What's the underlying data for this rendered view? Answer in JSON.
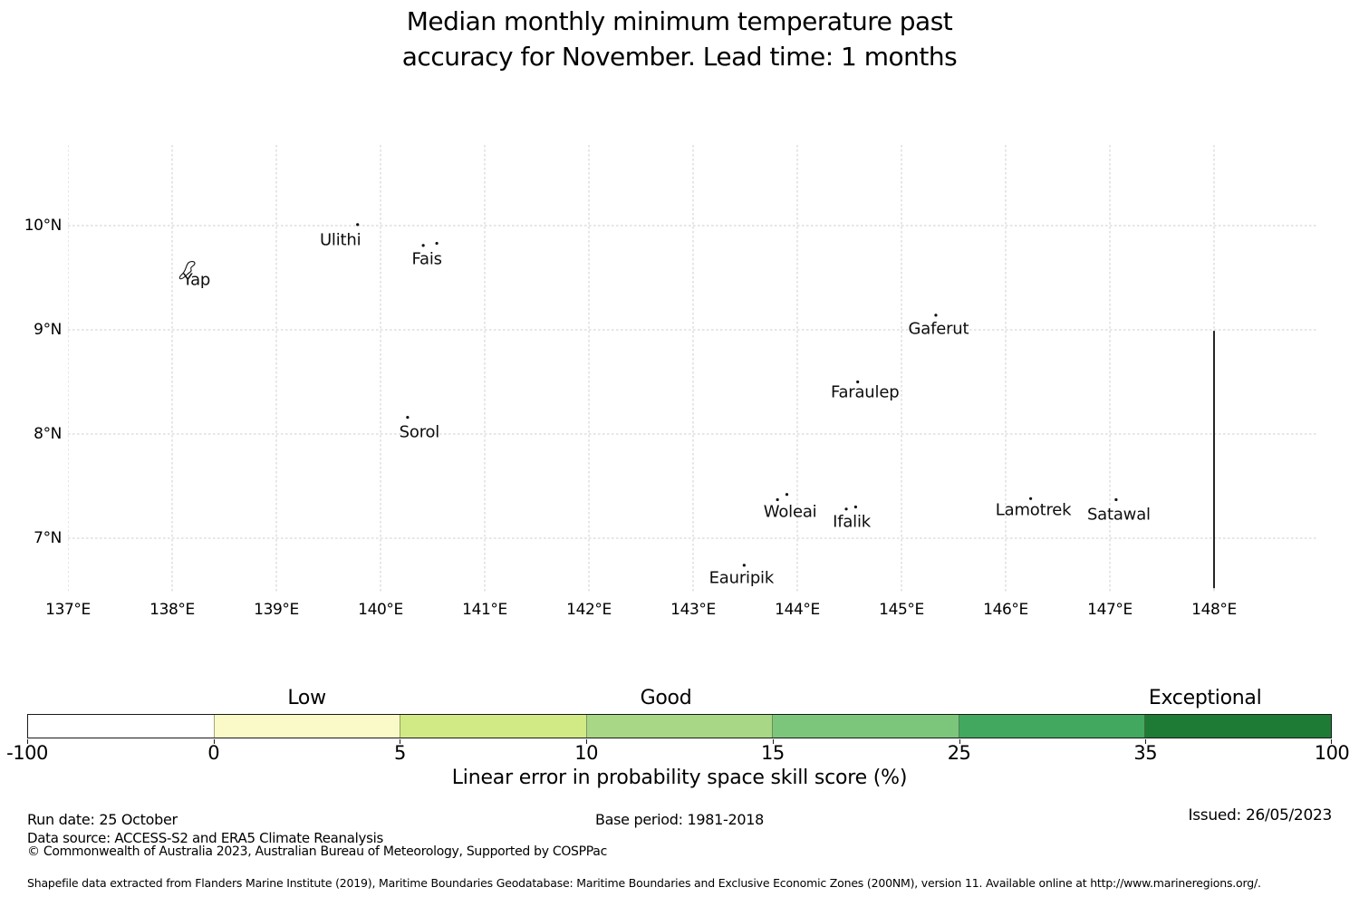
{
  "title": {
    "line1": "Median monthly minimum temperature past",
    "line2": "accuracy for November. Lead time: 1 months"
  },
  "chart_data": {
    "type": "scatter",
    "subtype": "geographic-map",
    "title": "Median monthly minimum temperature past accuracy for November. Lead time: 1 months",
    "grid": "dashed",
    "x_axis": {
      "range_deg_east": [
        137.0,
        149.0
      ],
      "ticks": [
        {
          "v": 137,
          "label": "137°E"
        },
        {
          "v": 138,
          "label": "138°E"
        },
        {
          "v": 139,
          "label": "139°E"
        },
        {
          "v": 140,
          "label": "140°E"
        },
        {
          "v": 141,
          "label": "141°E"
        },
        {
          "v": 142,
          "label": "142°E"
        },
        {
          "v": 143,
          "label": "143°E"
        },
        {
          "v": 144,
          "label": "144°E"
        },
        {
          "v": 145,
          "label": "145°E"
        },
        {
          "v": 146,
          "label": "146°E"
        },
        {
          "v": 147,
          "label": "147°E"
        },
        {
          "v": 148,
          "label": "148°E"
        }
      ]
    },
    "y_axis": {
      "range_deg_north": [
        6.47,
        10.77
      ],
      "ticks": [
        {
          "v": 10,
          "label": "10°N"
        },
        {
          "v": 9,
          "label": "9°N"
        },
        {
          "v": 8,
          "label": "8°N"
        },
        {
          "v": 7,
          "label": "7°N"
        }
      ]
    },
    "islands": [
      {
        "name": "Yap",
        "marker": "island-outline",
        "pts": [
          [
            138.13,
            9.56
          ]
        ]
      },
      {
        "name": "Ulithi",
        "marker": "dot",
        "pts": [
          [
            139.78,
            10.01
          ]
        ]
      },
      {
        "name": "Fais",
        "marker": "dot",
        "pts": [
          [
            140.41,
            9.81
          ],
          [
            140.54,
            9.83
          ]
        ]
      },
      {
        "name": "Sorol",
        "marker": "dot",
        "pts": [
          [
            140.26,
            8.16
          ]
        ]
      },
      {
        "name": "Gaferut",
        "marker": "dot",
        "pts": [
          [
            145.33,
            9.14
          ]
        ]
      },
      {
        "name": "Faraulep",
        "marker": "dot",
        "pts": [
          [
            144.58,
            8.5
          ]
        ]
      },
      {
        "name": "Woleai",
        "marker": "dot",
        "pts": [
          [
            143.81,
            7.37
          ],
          [
            143.9,
            7.42
          ]
        ]
      },
      {
        "name": "Ifalik",
        "marker": "dot",
        "pts": [
          [
            144.47,
            7.28
          ],
          [
            144.56,
            7.3
          ]
        ]
      },
      {
        "name": "Lamotrek",
        "marker": "dot",
        "pts": [
          [
            146.24,
            7.38
          ]
        ]
      },
      {
        "name": "Satawal",
        "marker": "dot",
        "pts": [
          [
            147.06,
            7.37
          ]
        ]
      },
      {
        "name": "Eauripik",
        "marker": "dot",
        "pts": [
          [
            143.49,
            6.74
          ]
        ]
      }
    ],
    "boundary_line": {
      "lon": 148.0,
      "lat_top": 8.99,
      "lat_bottom": 6.52,
      "color": "#262626"
    },
    "colorbar": {
      "xlabel": "Linear error in probability space skill score (%)",
      "tick_labels": [
        "-100",
        "0",
        "5",
        "10",
        "15",
        "25",
        "35",
        "100"
      ],
      "tick_values": [
        -100,
        0,
        5,
        10,
        15,
        25,
        35,
        100
      ],
      "segment_colors": [
        "#ffffff",
        "#fafac8",
        "#d2ea85",
        "#a8d786",
        "#7cc67c",
        "#42a85f",
        "#1e7b35"
      ],
      "categories": [
        {
          "label": "Low",
          "segment": 1
        },
        {
          "label": "Good",
          "segment": 3
        },
        {
          "label": "Exceptional",
          "segment": 6
        }
      ]
    }
  },
  "footer": {
    "run_date": "Run date: 25 October",
    "base_period": "Base period: 1981-2018",
    "issued": "Issued: 26/05/2023",
    "data_source": "Data source: ACCESS-S2 and ERA5 Climate Reanalysis",
    "copyright": "© Commonwealth of Australia 2023, Australian Bureau of Meteorology, Supported by COSPPac",
    "shapefile": "Shapefile data extracted from Flanders Marine Institute (2019), Maritime Boundaries Geodatabase: Maritime Boundaries and Exclusive Economic Zones (200NM), version 11. Available online at http://www.marineregions.org/."
  }
}
